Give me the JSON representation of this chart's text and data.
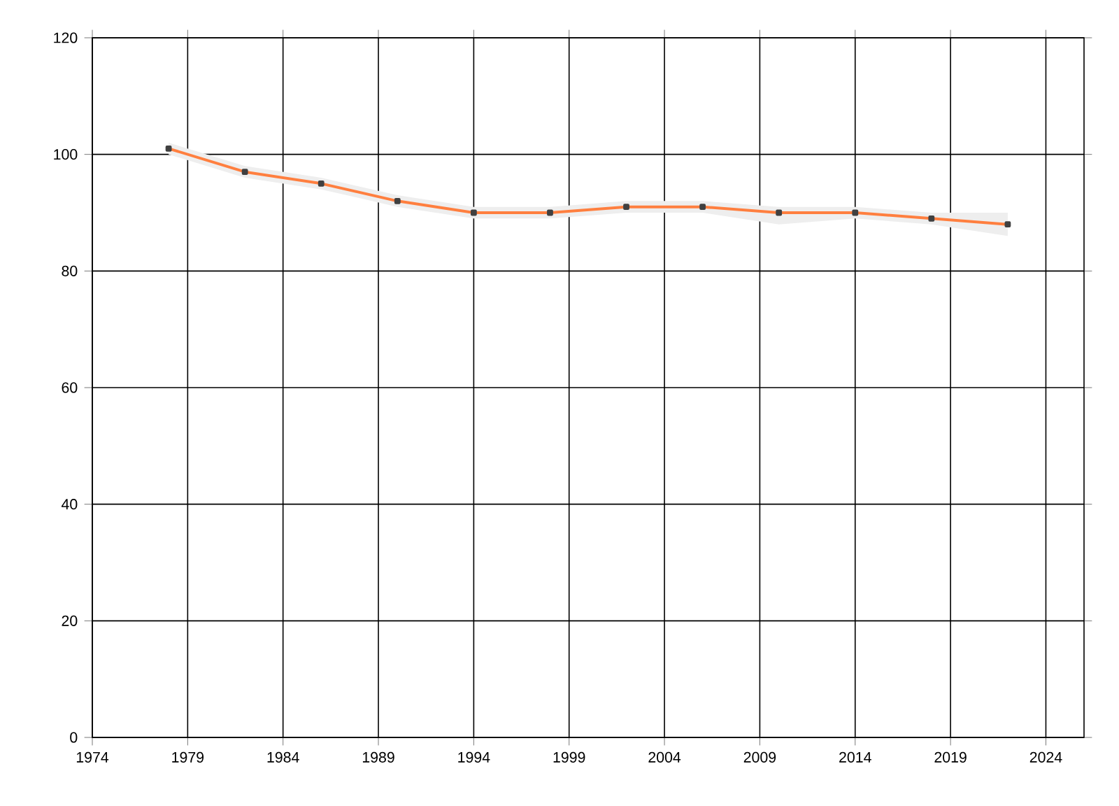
{
  "chart_data": {
    "type": "line",
    "x": [
      1978,
      1982,
      1986,
      1990,
      1994,
      1998,
      2002,
      2006,
      2010,
      2014,
      2018,
      2022
    ],
    "series": [
      {
        "color": "#ff7f3f",
        "values": [
          101,
          97,
          95,
          92,
          90,
          90,
          91,
          91,
          90,
          90,
          89,
          88
        ],
        "lower": [
          100,
          96,
          94,
          91,
          89,
          89,
          90,
          90,
          88,
          89,
          88,
          86
        ],
        "upper": [
          102,
          98,
          96,
          93,
          91,
          91,
          92,
          92,
          91,
          91,
          90,
          90
        ]
      }
    ],
    "xlim": [
      1974,
      2026
    ],
    "ylim": [
      0,
      120
    ],
    "xticks": [
      1974,
      1979,
      1984,
      1989,
      1994,
      1999,
      2004,
      2009,
      2014,
      2019,
      2024
    ],
    "yticks": [
      0,
      20,
      40,
      60,
      80,
      100,
      120
    ],
    "grid": true,
    "marker": "square",
    "line_style": "solid"
  }
}
